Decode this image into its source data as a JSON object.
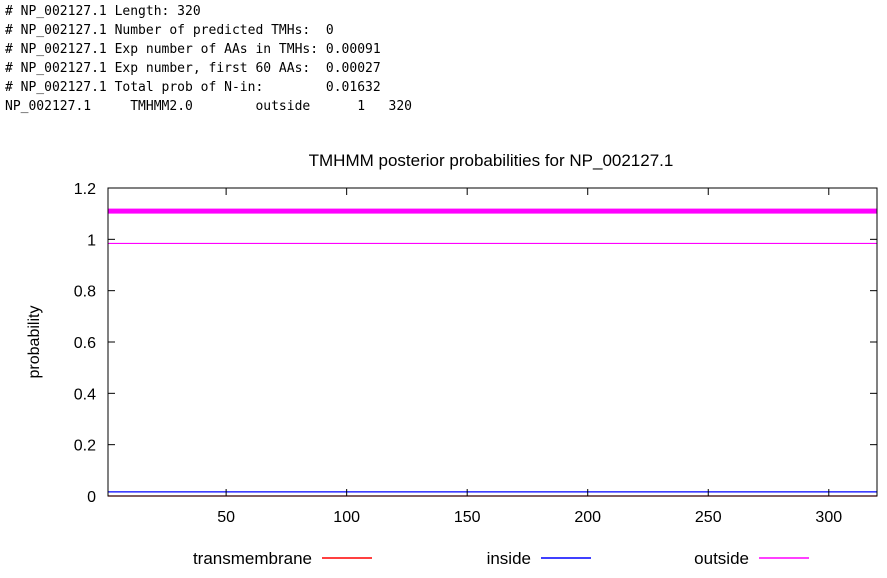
{
  "summary": {
    "lines": [
      "# NP_002127.1 Length: 320",
      "# NP_002127.1 Number of predicted TMHs:  0",
      "# NP_002127.1 Exp number of AAs in TMHs: 0.00091",
      "# NP_002127.1 Exp number, first 60 AAs:  0.00027",
      "# NP_002127.1 Total prob of N-in:        0.01632",
      "NP_002127.1\tTMHMM2.0\toutside\t     1   320"
    ]
  },
  "chart_data": {
    "type": "line",
    "title": "TMHMM posterior probabilities for NP_002127.1",
    "ylabel": "probability",
    "xlabel": "",
    "xlim": [
      1,
      320
    ],
    "ylim": [
      0,
      1.2
    ],
    "xticks": [
      50,
      100,
      150,
      200,
      250,
      300
    ],
    "yticks": [
      0,
      0.2,
      0.4,
      0.6,
      0.8,
      1,
      1.2
    ],
    "ytick_labels": [
      "0",
      "0.2",
      "0.4",
      "0.6",
      "0.8",
      "1",
      "1.2"
    ],
    "grid": false,
    "series": [
      {
        "name": "transmembrane",
        "color": "#ff0000",
        "x": [
          1,
          320
        ],
        "y": [
          0,
          0
        ]
      },
      {
        "name": "inside",
        "color": "#0000ff",
        "x": [
          1,
          320
        ],
        "y": [
          0.016,
          0.016
        ]
      },
      {
        "name": "outside",
        "color": "#ff00ff",
        "x": [
          1,
          320
        ],
        "y": [
          0.984,
          0.984
        ]
      }
    ],
    "annotations": [
      {
        "type": "band",
        "label": "outside",
        "y": 1.11,
        "color": "#ff00ff"
      }
    ],
    "legend_position": "bottom"
  }
}
